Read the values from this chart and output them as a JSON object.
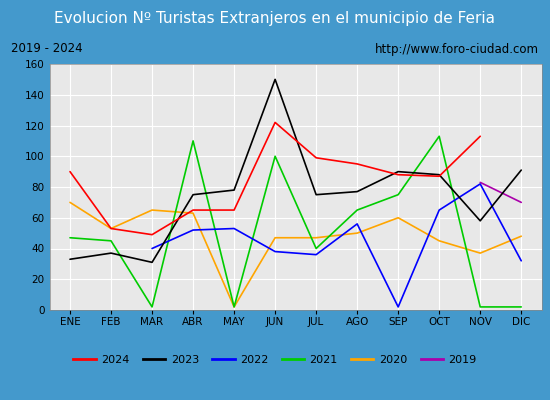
{
  "title": "Evolucion Nº Turistas Extranjeros en el municipio de Feria",
  "subtitle_left": "2019 - 2024",
  "subtitle_right": "http://www.foro-ciudad.com",
  "months": [
    "ENE",
    "FEB",
    "MAR",
    "ABR",
    "MAY",
    "JUN",
    "JUL",
    "AGO",
    "SEP",
    "OCT",
    "NOV",
    "DIC"
  ],
  "series": {
    "2024": [
      90,
      53,
      49,
      65,
      65,
      122,
      99,
      95,
      88,
      87,
      113,
      null
    ],
    "2023": [
      33,
      37,
      31,
      75,
      78,
      150,
      75,
      77,
      90,
      88,
      58,
      91
    ],
    "2022": [
      null,
      null,
      40,
      52,
      53,
      38,
      36,
      56,
      2,
      65,
      82,
      32
    ],
    "2021": [
      47,
      45,
      2,
      110,
      2,
      100,
      40,
      65,
      75,
      113,
      2,
      2
    ],
    "2020": [
      70,
      53,
      65,
      63,
      2,
      47,
      47,
      50,
      60,
      45,
      37,
      48
    ],
    "2019": [
      null,
      null,
      null,
      null,
      null,
      null,
      null,
      null,
      null,
      null,
      83,
      70
    ]
  },
  "colors": {
    "2024": "#ff0000",
    "2023": "#000000",
    "2022": "#0000ff",
    "2021": "#00cc00",
    "2020": "#ffa500",
    "2019": "#aa00aa"
  },
  "ylim": [
    0,
    160
  ],
  "yticks": [
    0,
    20,
    40,
    60,
    80,
    100,
    120,
    140,
    160
  ],
  "title_bg": "#4499cc",
  "subtitle_bg": "#e8e8e8",
  "outer_bg": "#cccccc",
  "plot_bg": "#e8e8e8",
  "grid_color": "#ffffff",
  "border_color": "#4499cc"
}
